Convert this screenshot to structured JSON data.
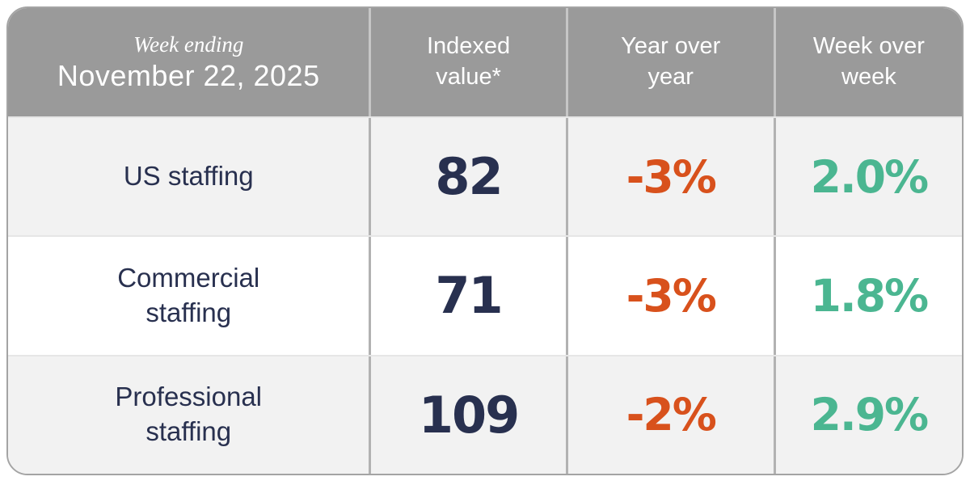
{
  "colors": {
    "header-bg": "#9a9a9a",
    "header-text": "#ffffff",
    "navy": "#28304f",
    "orange": "#d8511c",
    "green": "#4bb691",
    "row-odd": "#f2f2f2",
    "row-even": "#ffffff",
    "divider-header": "#c6c6c6",
    "divider-body": "#b2b2b2",
    "row-separator": "#e6e6e6",
    "outer-border": "#a4a4a4"
  },
  "table": {
    "header": {
      "week_ending": "Week ending",
      "date": "November 22, 2025",
      "col_indexed": "Indexed value*",
      "col_yoy": "Year over year",
      "col_wow": "Week over week"
    },
    "rows": [
      {
        "label": "US staffing",
        "indexed": "82",
        "yoy": "-3%",
        "wow": "2.0%"
      },
      {
        "label": "Commercial staffing",
        "indexed": "71",
        "yoy": "-3%",
        "wow": "1.8%"
      },
      {
        "label": "Professional staffing",
        "indexed": "109",
        "yoy": "-2%",
        "wow": "2.9%"
      }
    ]
  },
  "chart_data": {
    "type": "table",
    "title": "Week ending November 22, 2025",
    "columns": [
      "Week ending November 22, 2025",
      "Indexed value*",
      "Year over year",
      "Week over week"
    ],
    "rows": [
      [
        "US staffing",
        82,
        "-3%",
        "2.0%"
      ],
      [
        "Commercial staffing",
        71,
        "-3%",
        "1.8%"
      ],
      [
        "Professional staffing",
        109,
        "-2%",
        "2.9%"
      ]
    ],
    "notes": "Indexed value marked with asterisk footnote; year-over-year values negative (orange), week-over-week values positive (green)"
  }
}
